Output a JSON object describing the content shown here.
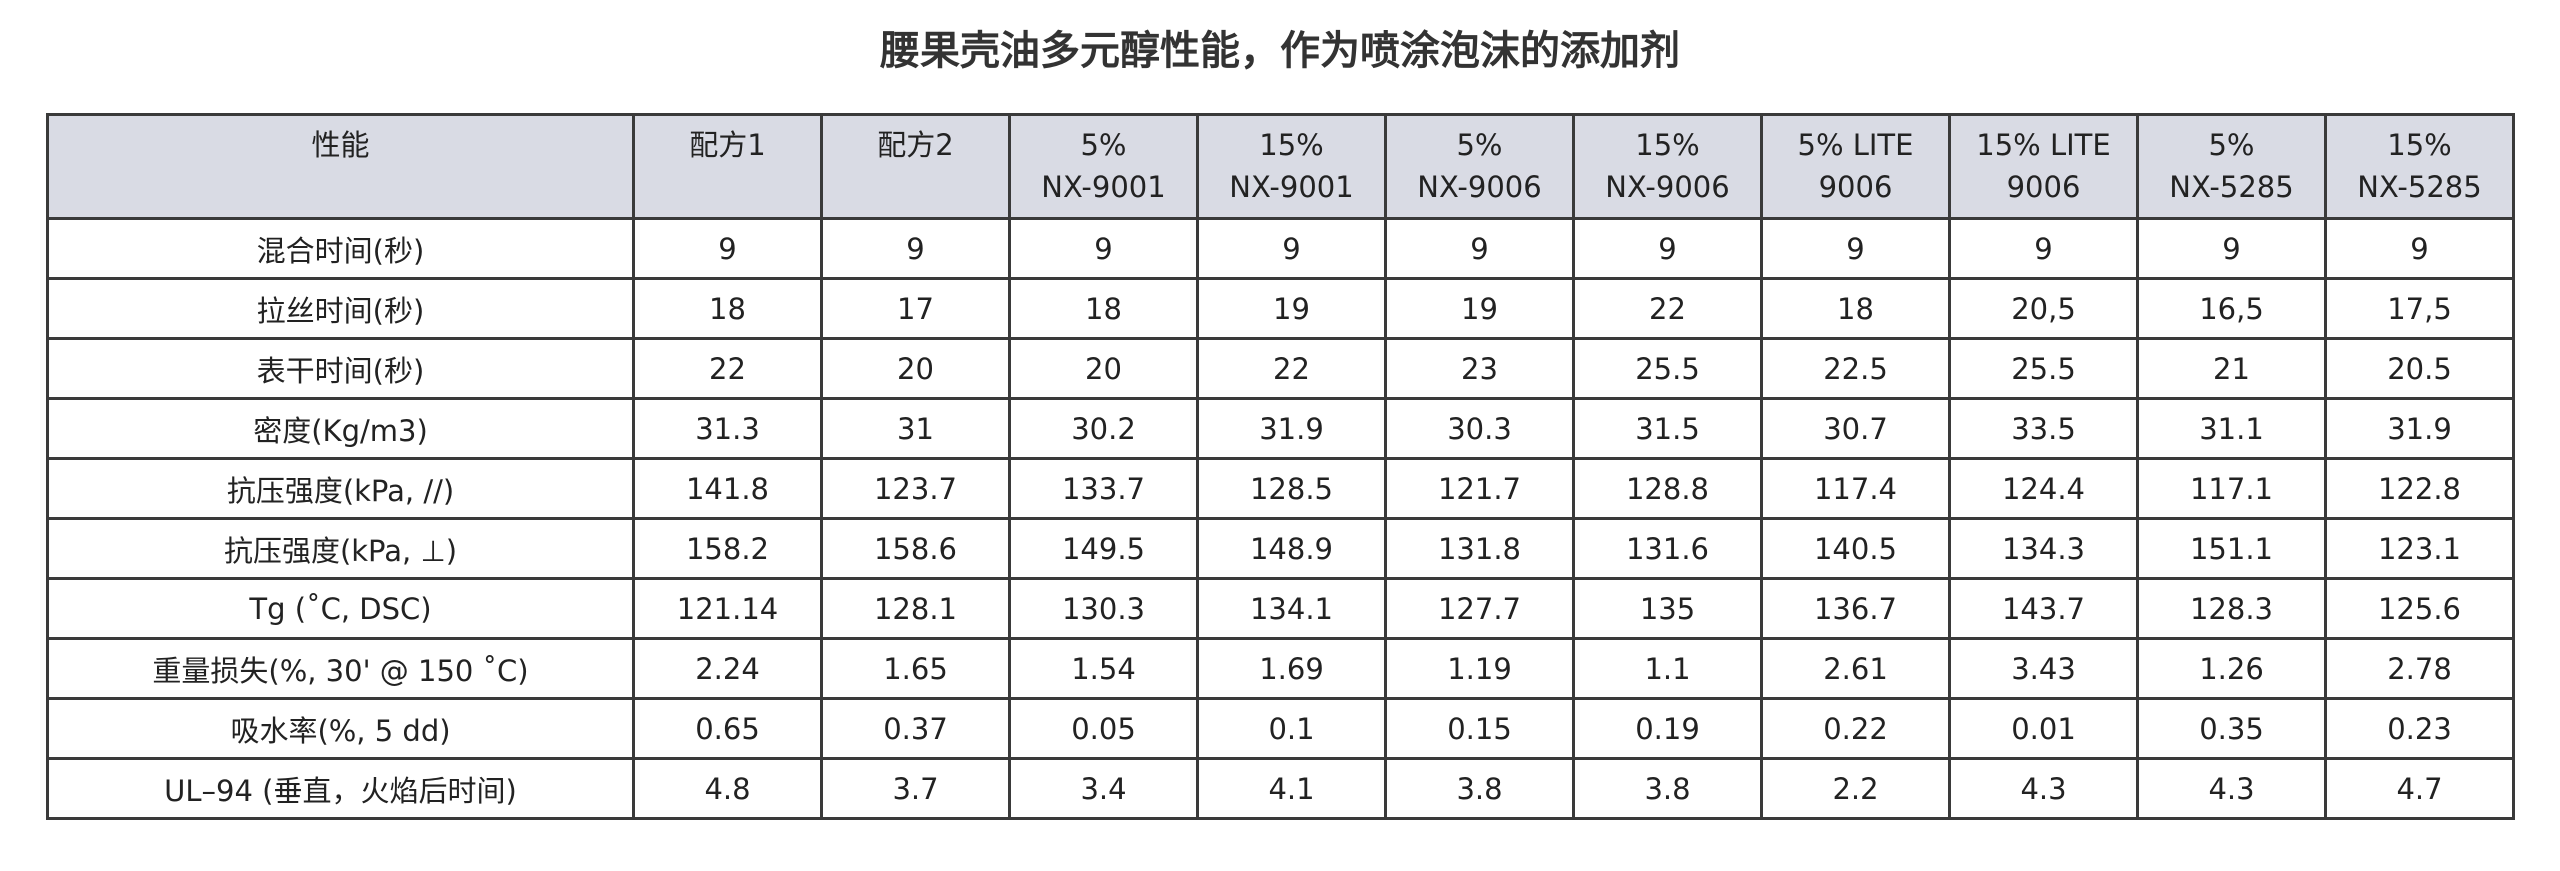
{
  "title": "腰果壳油多元醇性能，作为喷涂泡沫的添加剂",
  "table": {
    "header": [
      "性能",
      "配方1",
      "配方2",
      "5%\nNX-9001",
      "15%\nNX-9001",
      "5%\nNX-9006",
      "15%\nNX-9006",
      "5% LITE\n9006",
      "15% LITE\n9006",
      "5%\nNX-5285",
      "15%\nNX-5285"
    ],
    "rows": [
      [
        "混合时间(秒)",
        "9",
        "9",
        "9",
        "9",
        "9",
        "9",
        "9",
        "9",
        "9",
        "9"
      ],
      [
        "拉丝时间(秒)",
        "18",
        "17",
        "18",
        "19",
        "19",
        "22",
        "18",
        "20,5",
        "16,5",
        "17,5"
      ],
      [
        "表干时间(秒)",
        "22",
        "20",
        "20",
        "22",
        "23",
        "25.5",
        "22.5",
        "25.5",
        "21",
        "20.5"
      ],
      [
        "密度(Kg/m3)",
        "31.3",
        "31",
        "30.2",
        "31.9",
        "30.3",
        "31.5",
        "30.7",
        "33.5",
        "31.1",
        "31.9"
      ],
      [
        "抗压强度(kPa, //)",
        "141.8",
        "123.7",
        "133.7",
        "128.5",
        "121.7",
        "128.8",
        "117.4",
        "124.4",
        "117.1",
        "122.8"
      ],
      [
        "抗压强度(kPa, ⊥)",
        "158.2",
        "158.6",
        "149.5",
        "148.9",
        "131.8",
        "131.6",
        "140.5",
        "134.3",
        "151.1",
        "123.1"
      ],
      [
        "Tg (˚C, DSC)",
        "121.14",
        "128.1",
        "130.3",
        "134.1",
        "127.7",
        "135",
        "136.7",
        "143.7",
        "128.3",
        "125.6"
      ],
      [
        "重量损失(%, 30' @ 150 ˚C)",
        "2.24",
        "1.65",
        "1.54",
        "1.69",
        "1.19",
        "1.1",
        "2.61",
        "3.43",
        "1.26",
        "2.78"
      ],
      [
        "吸水率(%, 5 dd)",
        "0.65",
        "0.37",
        "0.05",
        "0.1",
        "0.15",
        "0.19",
        "0.22",
        "0.01",
        "0.35",
        "0.23"
      ],
      [
        "UL–94 (垂直，火焰后时间)",
        "4.8",
        "3.7",
        "3.4",
        "4.1",
        "3.8",
        "3.8",
        "2.2",
        "4.3",
        "4.3",
        "4.7"
      ]
    ]
  }
}
